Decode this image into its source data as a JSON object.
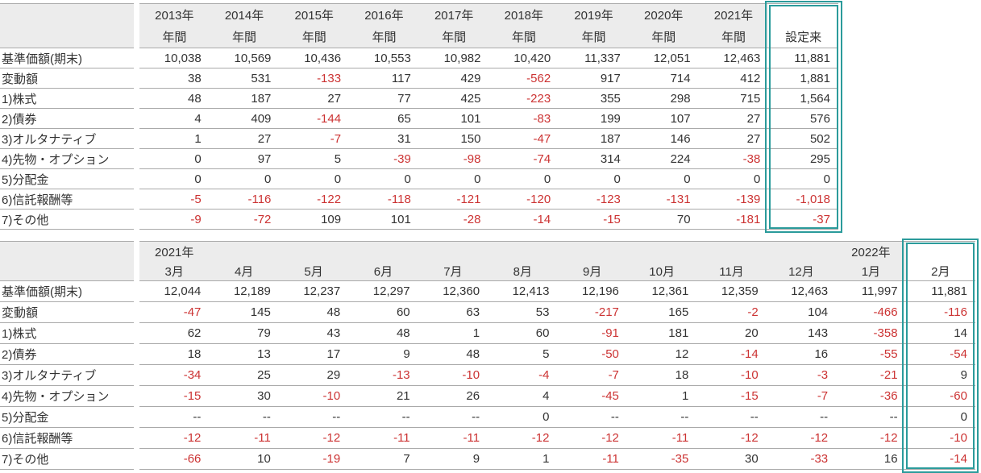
{
  "colors": {
    "highlight_border": "#2b9b9b",
    "negative_text": "#cc3333",
    "header_bg": "#ececec",
    "row_line": "#aaaaaa",
    "text": "#333333"
  },
  "tables": [
    {
      "id": "yearly",
      "name": "yearly-performance-table",
      "columns": [
        {
          "line1": "2013年",
          "line2": "年間"
        },
        {
          "line1": "2014年",
          "line2": "年間"
        },
        {
          "line1": "2015年",
          "line2": "年間"
        },
        {
          "line1": "2016年",
          "line2": "年間"
        },
        {
          "line1": "2017年",
          "line2": "年間"
        },
        {
          "line1": "2018年",
          "line2": "年間"
        },
        {
          "line1": "2019年",
          "line2": "年間"
        },
        {
          "line1": "2020年",
          "line2": "年間"
        },
        {
          "line1": "2021年",
          "line2": "年間"
        },
        {
          "line1": "",
          "line2": "設定来",
          "highlight": true
        }
      ],
      "rows": [
        {
          "label": "基準価額(期末)",
          "values": [
            "10,038",
            "10,569",
            "10,436",
            "10,553",
            "10,982",
            "10,420",
            "11,337",
            "12,051",
            "12,463",
            "11,881"
          ]
        },
        {
          "label": "変動額",
          "values": [
            "38",
            "531",
            "-133",
            "117",
            "429",
            "-562",
            "917",
            "714",
            "412",
            "1,881"
          ]
        },
        {
          "label": "1)株式",
          "values": [
            "48",
            "187",
            "27",
            "77",
            "425",
            "-223",
            "355",
            "298",
            "715",
            "1,564"
          ]
        },
        {
          "label": "2)債券",
          "values": [
            "4",
            "409",
            "-144",
            "65",
            "101",
            "-83",
            "199",
            "107",
            "27",
            "576"
          ]
        },
        {
          "label": "3)オルタナティブ",
          "values": [
            "1",
            "27",
            "-7",
            "31",
            "150",
            "-47",
            "187",
            "146",
            "27",
            "502"
          ]
        },
        {
          "label": "4)先物・オプション",
          "values": [
            "0",
            "97",
            "5",
            "-39",
            "-98",
            "-74",
            "314",
            "224",
            "-38",
            "295"
          ]
        },
        {
          "label": "5)分配金",
          "values": [
            "0",
            "0",
            "0",
            "0",
            "0",
            "0",
            "0",
            "0",
            "0",
            "0"
          ]
        },
        {
          "label": "6)信託報酬等",
          "values": [
            "-5",
            "-116",
            "-122",
            "-118",
            "-121",
            "-120",
            "-123",
            "-131",
            "-139",
            "-1,018"
          ]
        },
        {
          "label": "7)その他",
          "values": [
            "-9",
            "-72",
            "109",
            "101",
            "-28",
            "-14",
            "-15",
            "70",
            "-181",
            "-37"
          ]
        }
      ]
    },
    {
      "id": "monthly",
      "name": "monthly-performance-table",
      "columns": [
        {
          "line1": "2021年",
          "line2": "3月"
        },
        {
          "line1": "",
          "line2": "4月"
        },
        {
          "line1": "",
          "line2": "5月"
        },
        {
          "line1": "",
          "line2": "6月"
        },
        {
          "line1": "",
          "line2": "7月"
        },
        {
          "line1": "",
          "line2": "8月"
        },
        {
          "line1": "",
          "line2": "9月"
        },
        {
          "line1": "",
          "line2": "10月"
        },
        {
          "line1": "",
          "line2": "11月"
        },
        {
          "line1": "",
          "line2": "12月"
        },
        {
          "line1": "2022年",
          "line2": "1月"
        },
        {
          "line1": "",
          "line2": "2月",
          "highlight": true
        }
      ],
      "rows": [
        {
          "label": "基準価額(期末)",
          "values": [
            "12,044",
            "12,189",
            "12,237",
            "12,297",
            "12,360",
            "12,413",
            "12,196",
            "12,361",
            "12,359",
            "12,463",
            "11,997",
            "11,881"
          ]
        },
        {
          "label": "変動額",
          "values": [
            "-47",
            "145",
            "48",
            "60",
            "63",
            "53",
            "-217",
            "165",
            "-2",
            "104",
            "-466",
            "-116"
          ]
        },
        {
          "label": "1)株式",
          "values": [
            "62",
            "79",
            "43",
            "48",
            "1",
            "60",
            "-91",
            "181",
            "20",
            "143",
            "-358",
            "14"
          ]
        },
        {
          "label": "2)債券",
          "values": [
            "18",
            "13",
            "17",
            "9",
            "48",
            "5",
            "-50",
            "12",
            "-14",
            "16",
            "-55",
            "-54"
          ]
        },
        {
          "label": "3)オルタナティブ",
          "values": [
            "-34",
            "25",
            "29",
            "-13",
            "-10",
            "-4",
            "-7",
            "18",
            "-10",
            "-3",
            "-21",
            "9"
          ]
        },
        {
          "label": "4)先物・オプション",
          "values": [
            "-15",
            "30",
            "-10",
            "21",
            "26",
            "4",
            "-45",
            "1",
            "-15",
            "-7",
            "-36",
            "-60"
          ]
        },
        {
          "label": "5)分配金",
          "values": [
            "--",
            "--",
            "--",
            "--",
            "--",
            "0",
            "--",
            "--",
            "--",
            "--",
            "--",
            "0"
          ]
        },
        {
          "label": "6)信託報酬等",
          "values": [
            "-12",
            "-11",
            "-12",
            "-11",
            "-11",
            "-12",
            "-12",
            "-11",
            "-12",
            "-12",
            "-12",
            "-10"
          ]
        },
        {
          "label": "7)その他",
          "values": [
            "-66",
            "10",
            "-19",
            "7",
            "9",
            "1",
            "-11",
            "-35",
            "30",
            "-33",
            "16",
            "-14"
          ]
        }
      ]
    }
  ]
}
